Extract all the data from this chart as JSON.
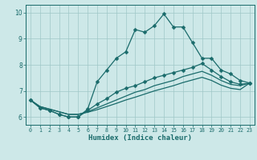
{
  "xlabel": "Humidex (Indice chaleur)",
  "xlim": [
    -0.5,
    23.5
  ],
  "ylim": [
    5.7,
    10.3
  ],
  "xticks": [
    0,
    1,
    2,
    3,
    4,
    5,
    6,
    7,
    8,
    9,
    10,
    11,
    12,
    13,
    14,
    15,
    16,
    17,
    18,
    19,
    20,
    21,
    22,
    23
  ],
  "yticks": [
    6,
    7,
    8,
    9,
    10
  ],
  "background_color": "#cde8e8",
  "grid_color": "#a0c8c8",
  "line_color": "#1a6b6b",
  "lines": [
    {
      "x": [
        0,
        1,
        2,
        3,
        4,
        5,
        6,
        7,
        8,
        9,
        10,
        11,
        12,
        13,
        14,
        15,
        16,
        17,
        18,
        19,
        20,
        21,
        22,
        23
      ],
      "y": [
        6.65,
        6.35,
        6.25,
        6.1,
        6.0,
        6.0,
        6.3,
        7.35,
        7.8,
        8.25,
        8.5,
        9.35,
        9.25,
        9.5,
        9.95,
        9.45,
        9.45,
        8.85,
        8.25,
        8.25,
        7.8,
        7.65,
        7.4,
        7.3
      ],
      "marker": "D",
      "markersize": 2.5,
      "linewidth": 0.9
    },
    {
      "x": [
        0,
        1,
        2,
        3,
        4,
        5,
        6,
        7,
        8,
        9,
        10,
        11,
        12,
        13,
        14,
        15,
        16,
        17,
        18,
        19,
        20,
        21,
        22,
        23
      ],
      "y": [
        6.65,
        6.35,
        6.25,
        6.1,
        6.0,
        6.0,
        6.25,
        6.5,
        6.7,
        6.95,
        7.1,
        7.2,
        7.35,
        7.5,
        7.6,
        7.7,
        7.8,
        7.9,
        8.05,
        7.8,
        7.55,
        7.35,
        7.25,
        7.3
      ],
      "marker": "D",
      "markersize": 2.5,
      "linewidth": 0.9
    },
    {
      "x": [
        0,
        1,
        2,
        3,
        4,
        5,
        6,
        7,
        8,
        9,
        10,
        11,
        12,
        13,
        14,
        15,
        16,
        17,
        18,
        19,
        20,
        21,
        22,
        23
      ],
      "y": [
        6.65,
        6.4,
        6.3,
        6.2,
        6.1,
        6.1,
        6.2,
        6.35,
        6.5,
        6.65,
        6.8,
        6.95,
        7.05,
        7.2,
        7.3,
        7.4,
        7.55,
        7.65,
        7.75,
        7.6,
        7.4,
        7.25,
        7.2,
        7.3
      ],
      "marker": null,
      "markersize": 0,
      "linewidth": 0.9
    },
    {
      "x": [
        0,
        1,
        2,
        3,
        4,
        5,
        6,
        7,
        8,
        9,
        10,
        11,
        12,
        13,
        14,
        15,
        16,
        17,
        18,
        19,
        20,
        21,
        22,
        23
      ],
      "y": [
        6.65,
        6.4,
        6.3,
        6.2,
        6.1,
        6.1,
        6.18,
        6.28,
        6.4,
        6.52,
        6.65,
        6.76,
        6.88,
        7.0,
        7.1,
        7.2,
        7.32,
        7.42,
        7.52,
        7.4,
        7.22,
        7.1,
        7.05,
        7.3
      ],
      "marker": null,
      "markersize": 0,
      "linewidth": 0.9
    }
  ]
}
